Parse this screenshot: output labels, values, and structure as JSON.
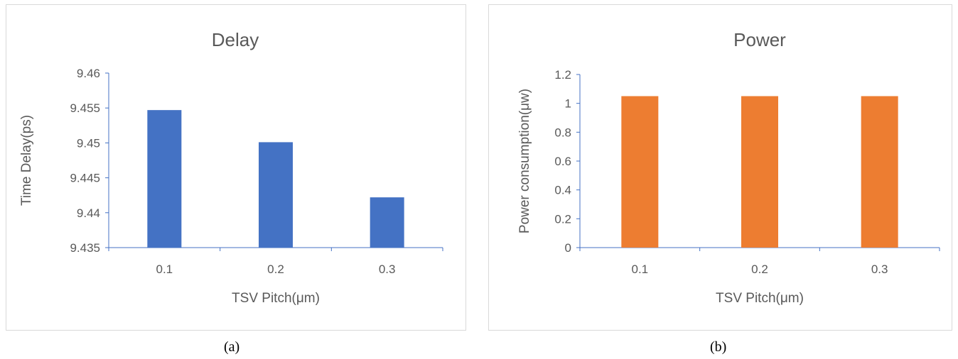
{
  "chart_data": [
    {
      "type": "bar",
      "title": "Delay",
      "categories": [
        "0.1",
        "0.2",
        "0.3"
      ],
      "values": [
        9.4547,
        9.4501,
        9.4422
      ],
      "xlabel": "TSV Pitch(μm)",
      "ylabel": "Time Delay(ps)",
      "ylim": [
        9.435,
        9.46
      ],
      "yticks": [
        "9.435",
        "9.44",
        "9.445",
        "9.45",
        "9.455",
        "9.46"
      ],
      "grid": false,
      "color": "#4472C4"
    },
    {
      "type": "bar",
      "title": "Power",
      "categories": [
        "0.1",
        "0.2",
        "0.3"
      ],
      "values": [
        1.05,
        1.05,
        1.05
      ],
      "xlabel": "TSV Pitch(μm)",
      "ylabel": "Power consumption(μw)",
      "ylim": [
        0,
        1.2
      ],
      "yticks": [
        "0",
        "0.2",
        "0.4",
        "0.6",
        "0.8",
        "1",
        "1.2"
      ],
      "grid": false,
      "color": "#ED7D31"
    }
  ],
  "captions": [
    "(a)",
    "(b)"
  ]
}
